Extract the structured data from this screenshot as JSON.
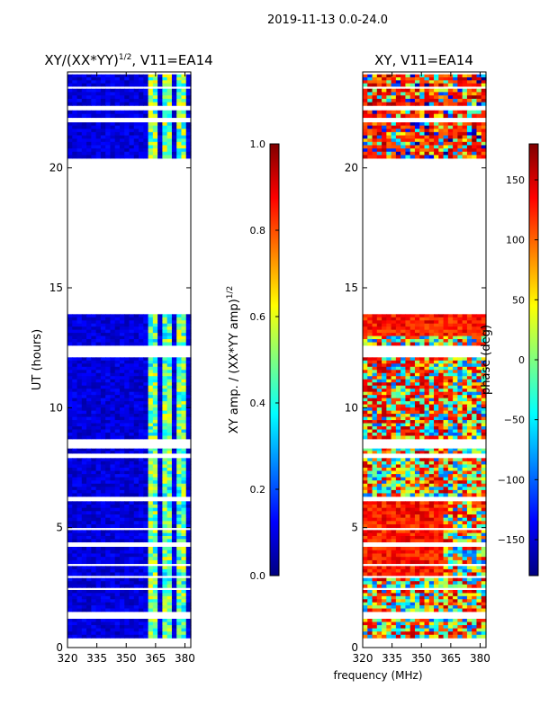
{
  "figure": {
    "suptitle": "2019-11-13 0.0-24.0",
    "xlabel": "frequency (MHz)"
  },
  "chart_data": [
    {
      "type": "heatmap",
      "title_main": "XY/(XX*YY)",
      "title_sup": "1/2",
      "title_suffix": ", V11=EA14",
      "ylabel": "UT (hours)",
      "xlim": [
        320,
        383
      ],
      "ylim": [
        0,
        24
      ],
      "xticks": [
        320,
        335,
        350,
        365,
        380
      ],
      "yticks": [
        0,
        5,
        10,
        15,
        20
      ],
      "colorbar": {
        "label_main": "XY amp. / (XX*YY amp)",
        "label_sup": "1/2",
        "range": [
          0.0,
          1.0
        ],
        "ticks": [
          "0.0",
          "0.2",
          "0.4",
          "0.6",
          "0.8",
          "1.0"
        ],
        "colormap": "jet"
      },
      "data_rows_ut": [
        [
          0.4,
          1.2
        ],
        [
          1.5,
          2.4
        ],
        [
          2.5,
          2.9
        ],
        [
          3.0,
          3.4
        ],
        [
          3.5,
          4.2
        ],
        [
          4.4,
          4.9
        ],
        [
          5.0,
          6.1
        ],
        [
          6.3,
          7.9
        ],
        [
          8.1,
          8.3
        ],
        [
          8.7,
          12.1
        ],
        [
          12.6,
          13.9
        ],
        [
          20.4,
          21.9
        ],
        [
          22.1,
          22.4
        ],
        [
          22.6,
          23.3
        ],
        [
          23.4,
          23.9
        ]
      ],
      "bright_bands_mhz": [
        [
          360,
          367
        ],
        [
          369,
          373
        ],
        [
          376,
          380
        ]
      ]
    },
    {
      "type": "heatmap",
      "title_main": "XY, V11=EA14",
      "ylabel": "",
      "xlim": [
        320,
        383
      ],
      "ylim": [
        0,
        24
      ],
      "xticks": [
        320,
        335,
        350,
        365,
        380
      ],
      "yticks": [
        0,
        5,
        10,
        15,
        20
      ],
      "colorbar": {
        "label_main": "phase (deg)",
        "range": [
          -180,
          180
        ],
        "ticks": [
          "−150",
          "−100",
          "−50",
          "0",
          "50",
          "100",
          "150"
        ],
        "colormap": "jet"
      },
      "data_rows_ut": [
        [
          0.4,
          1.2
        ],
        [
          1.5,
          2.4
        ],
        [
          2.5,
          2.9
        ],
        [
          3.0,
          3.4
        ],
        [
          3.5,
          4.2
        ],
        [
          4.4,
          4.9
        ],
        [
          5.0,
          6.1
        ],
        [
          6.3,
          7.9
        ],
        [
          8.1,
          8.3
        ],
        [
          8.7,
          12.1
        ],
        [
          12.6,
          13.9
        ],
        [
          20.4,
          21.9
        ],
        [
          22.1,
          22.4
        ],
        [
          22.6,
          23.3
        ],
        [
          23.4,
          23.9
        ]
      ]
    }
  ]
}
